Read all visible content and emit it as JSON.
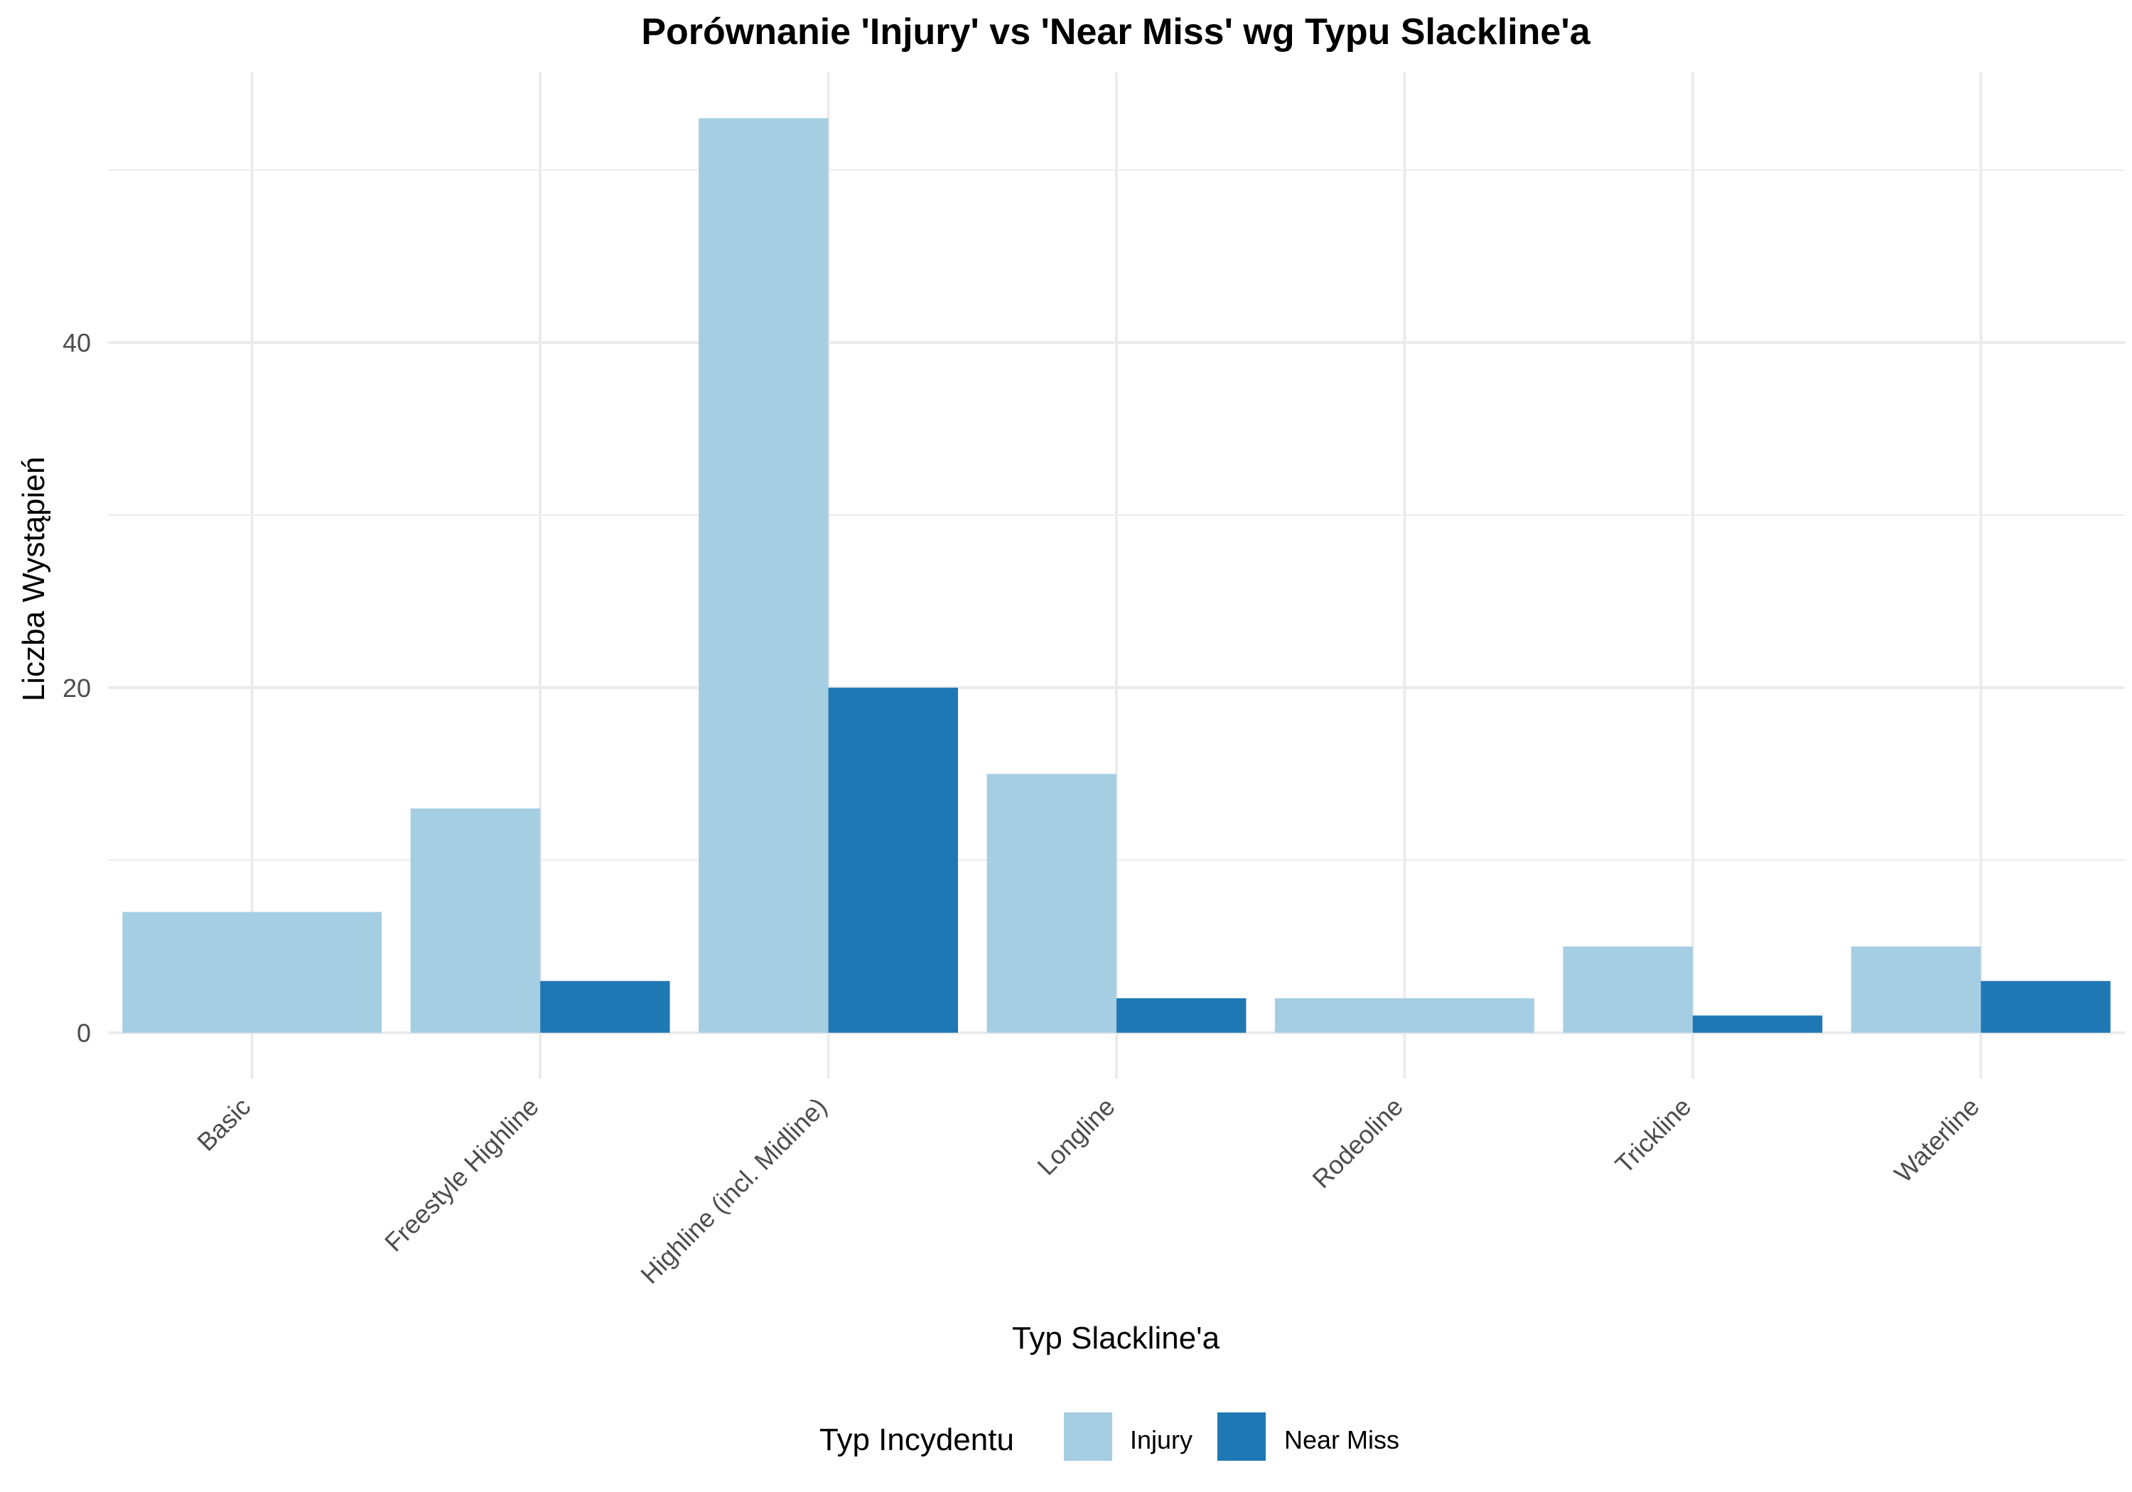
{
  "chart_data": {
    "type": "bar",
    "title": "Porównanie 'Injury' vs 'Near Miss' wg Typu Slackline'a",
    "xlabel": "Typ Slackline'a",
    "ylabel": "Liczba Wystąpień",
    "categories": [
      "Basic",
      "Freestyle Highline",
      "Highline (incl. Midline)",
      "Longline",
      "Rodeoline",
      "Trickline",
      "Waterline"
    ],
    "series": [
      {
        "name": "Injury",
        "color": "#a6cee3",
        "values": [
          7,
          13,
          53,
          15,
          2,
          5,
          5
        ]
      },
      {
        "name": "Near Miss",
        "color": "#1f78b4",
        "values": [
          0,
          3,
          20,
          2,
          0,
          1,
          3
        ]
      }
    ],
    "bar_mode": "dodge, single bar fills group width when only one series is present",
    "ylim": [
      -2.65,
      55.65
    ],
    "y_ticks": [
      0,
      20,
      40
    ],
    "y_minor_ticks": [
      10,
      30,
      50
    ],
    "grid": true,
    "legend": {
      "title": "Typ Incydentu",
      "position": "bottom"
    }
  }
}
